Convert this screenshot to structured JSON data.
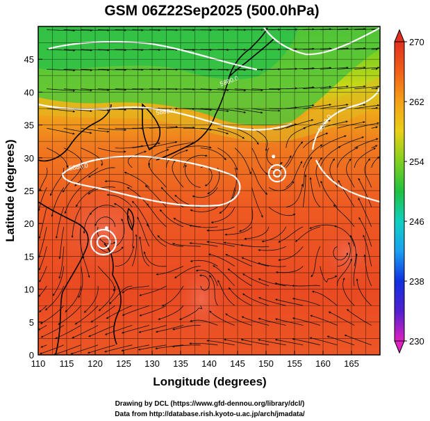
{
  "chart_data": {
    "type": "heatmap",
    "title": "GSM 06Z22Sep2025 (500.0hPa)",
    "xlabel": "Longitude (degrees)",
    "ylabel": "Latitude  (degrees)",
    "xlim": [
      110,
      170
    ],
    "ylim": [
      0,
      50
    ],
    "xticks": [
      110,
      115,
      120,
      125,
      130,
      135,
      140,
      145,
      150,
      155,
      160,
      165
    ],
    "yticks": [
      0,
      5,
      10,
      15,
      20,
      25,
      30,
      35,
      40,
      45
    ],
    "colorbar": {
      "min": 230,
      "max": 270,
      "ticks": [
        230,
        238,
        246,
        254,
        262,
        270
      ],
      "colors": [
        "#e020c0",
        "#5020d0",
        "#1030e0",
        "#1aa0f0",
        "#10d0c0",
        "#20c040",
        "#80d020",
        "#e8d018",
        "#f5a018",
        "#f06018",
        "#e03020"
      ]
    },
    "contour_labels": [
      "5880.0",
      "5880.0",
      "5880.0",
      "5880.0"
    ],
    "cyclone_centers": [
      {
        "lon": 122,
        "lat": 19.3
      },
      {
        "lon": 151.3,
        "lat": 30.2
      }
    ],
    "credits": [
      "Drawing by DCL (https://www.gfd-dennou.org/library/dcl/)",
      "Data from http://database.rish.kyoto-u.ac.jp/arch/jmadata/"
    ]
  }
}
